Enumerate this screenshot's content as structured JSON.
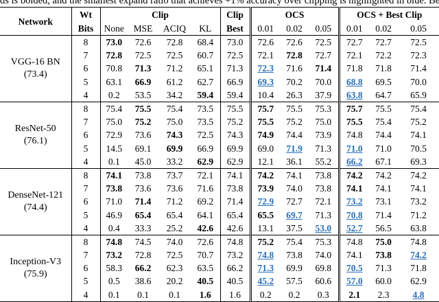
{
  "caption": "ds is bolded, and the smallest expand ratio that achieves +1% accuracy over clipping is highlighted in blue. Best viewed in",
  "header": {
    "network": "Network",
    "wt": "Wt",
    "bits": "Bits",
    "clip": "Clip",
    "clip_best_1": "Clip",
    "clip_best_2": "Best",
    "ocs": "OCS",
    "ocs_best": "OCS + Best Clip",
    "cols": [
      "None",
      "MSE",
      "ACIQ",
      "KL",
      "0.01",
      "0.02",
      "0.05",
      "0.01",
      "0.02",
      "0.05"
    ]
  },
  "groups": [
    {
      "name": "VGG-16 BN",
      "baseline": "(73.4)",
      "rows": [
        {
          "bits": "8",
          "cells": [
            "73.0",
            "72.6",
            "72.8",
            "68.4",
            "73.0",
            "72.6",
            "72.6",
            "72.5",
            "72.7",
            "72.7",
            "72.5"
          ],
          "bold": [
            0
          ],
          "blue": []
        },
        {
          "bits": "7",
          "cells": [
            "72.8",
            "72.5",
            "72.5",
            "60.7",
            "72.5",
            "72.1",
            "72.8",
            "72.7",
            "72.1",
            "72.2",
            "72.3"
          ],
          "bold": [
            0,
            6
          ],
          "blue": []
        },
        {
          "bits": "6",
          "cells": [
            "70.8",
            "71.3",
            "71.2",
            "65.1",
            "71.3",
            "72.3",
            "71.6",
            "71.4",
            "71.8",
            "71.8",
            "71.4"
          ],
          "bold": [
            1,
            7
          ],
          "blue": [
            5
          ]
        },
        {
          "bits": "5",
          "cells": [
            "63.1",
            "66.9",
            "61.2",
            "62.7",
            "66.9",
            "69.3",
            "70.2",
            "70.0",
            "68.8",
            "69.5",
            "70.0"
          ],
          "bold": [
            1
          ],
          "blue": [
            5,
            8
          ]
        },
        {
          "bits": "4",
          "cells": [
            "0.2",
            "53.5",
            "34.2",
            "59.4",
            "59.4",
            "10.4",
            "26.3",
            "37.9",
            "63.8",
            "64.7",
            "65.9"
          ],
          "bold": [
            3
          ],
          "blue": [
            8
          ]
        }
      ]
    },
    {
      "name": "ResNet-50",
      "baseline": "(76.1)",
      "rows": [
        {
          "bits": "8",
          "cells": [
            "75.4",
            "75.5",
            "75.4",
            "73.5",
            "75.5",
            "75.7",
            "75.5",
            "75.3",
            "75.7",
            "75.5",
            "75.4"
          ],
          "bold": [
            1,
            5,
            8
          ],
          "blue": []
        },
        {
          "bits": "7",
          "cells": [
            "75.0",
            "75.2",
            "75.0",
            "73.5",
            "75.2",
            "75.5",
            "75.2",
            "75.0",
            "75.5",
            "75.4",
            "75.2"
          ],
          "bold": [
            1,
            5,
            8
          ],
          "blue": []
        },
        {
          "bits": "6",
          "cells": [
            "72.9",
            "73.6",
            "74.3",
            "72.5",
            "74.3",
            "74.9",
            "74.4",
            "73.9",
            "74.8",
            "74.4",
            "74.1"
          ],
          "bold": [
            2,
            5
          ],
          "blue": []
        },
        {
          "bits": "5",
          "cells": [
            "14.5",
            "69.1",
            "69.9",
            "66.9",
            "69.9",
            "69.0",
            "71.9",
            "71.3",
            "71.0",
            "71.0",
            "70.5"
          ],
          "bold": [
            2
          ],
          "blue": [
            6,
            8
          ]
        },
        {
          "bits": "4",
          "cells": [
            "0.1",
            "45.0",
            "33.2",
            "62.9",
            "62.9",
            "12.1",
            "36.1",
            "55.2",
            "66.2",
            "67.1",
            "69.3"
          ],
          "bold": [
            3
          ],
          "blue": [
            8
          ]
        }
      ]
    },
    {
      "name": "DenseNet-121",
      "baseline": "(74.4)",
      "rows": [
        {
          "bits": "8",
          "cells": [
            "74.1",
            "73.8",
            "73.7",
            "72.1",
            "74.1",
            "74.2",
            "74.1",
            "73.8",
            "74.2",
            "74.2",
            "74.2"
          ],
          "bold": [
            0,
            5,
            8
          ],
          "blue": []
        },
        {
          "bits": "7",
          "cells": [
            "73.8",
            "73.6",
            "73.6",
            "71.6",
            "73.8",
            "73.9",
            "74.0",
            "73.8",
            "74.1",
            "74.1",
            "74.1"
          ],
          "bold": [
            0,
            5,
            8
          ],
          "blue": []
        },
        {
          "bits": "6",
          "cells": [
            "71.0",
            "71.4",
            "71.2",
            "69.2",
            "71.4",
            "72.9",
            "72.7",
            "72.1",
            "73.2",
            "73.1",
            "73.2"
          ],
          "bold": [
            1
          ],
          "blue": [
            5,
            8
          ]
        },
        {
          "bits": "5",
          "cells": [
            "46.9",
            "65.4",
            "65.4",
            "64.1",
            "65.4",
            "65.5",
            "69.7",
            "71.3",
            "70.8",
            "71.4",
            "71.2"
          ],
          "bold": [
            1,
            5
          ],
          "blue": [
            6,
            8
          ]
        },
        {
          "bits": "4",
          "cells": [
            "0.4",
            "33.3",
            "25.2",
            "42.6",
            "42.6",
            "13.1",
            "37.5",
            "53.0",
            "52.7",
            "56.5",
            "63.8"
          ],
          "bold": [
            3
          ],
          "blue": [
            7,
            8
          ]
        }
      ]
    },
    {
      "name": "Inception-V3",
      "baseline": "(75.9)",
      "rows": [
        {
          "bits": "8",
          "cells": [
            "74.8",
            "74.5",
            "74.0",
            "72.6",
            "74.8",
            "75.2",
            "75.4",
            "75.3",
            "74.8",
            "75.0",
            "74.8"
          ],
          "bold": [
            0,
            5,
            9
          ],
          "blue": []
        },
        {
          "bits": "7",
          "cells": [
            "73.2",
            "72.8",
            "72.5",
            "70.7",
            "73.2",
            "74.8",
            "73.8",
            "74.0",
            "74.1",
            "73.8",
            "74.2"
          ],
          "bold": [
            0,
            9
          ],
          "blue": [
            5,
            10
          ]
        },
        {
          "bits": "6",
          "cells": [
            "58.3",
            "66.2",
            "62.3",
            "63.5",
            "66.2",
            "71.3",
            "69.9",
            "69.8",
            "70.5",
            "71.3",
            "71.8"
          ],
          "bold": [
            1
          ],
          "blue": [
            5,
            8
          ]
        },
        {
          "bits": "5",
          "cells": [
            "0.5",
            "38.6",
            "20.2",
            "40.5",
            "40.5",
            "45.2",
            "57.5",
            "60.6",
            "57.0",
            "60.0",
            "62.9"
          ],
          "bold": [
            3
          ],
          "blue": [
            5,
            8
          ]
        },
        {
          "bits": "4",
          "cells": [
            "0.1",
            "0.1",
            "0.1",
            "1.6",
            "1.6",
            "0.2",
            "0.2",
            "0.3",
            "2.1",
            "2.3",
            "4.8"
          ],
          "bold": [
            3,
            8
          ],
          "blue": [
            10
          ]
        }
      ]
    }
  ]
}
